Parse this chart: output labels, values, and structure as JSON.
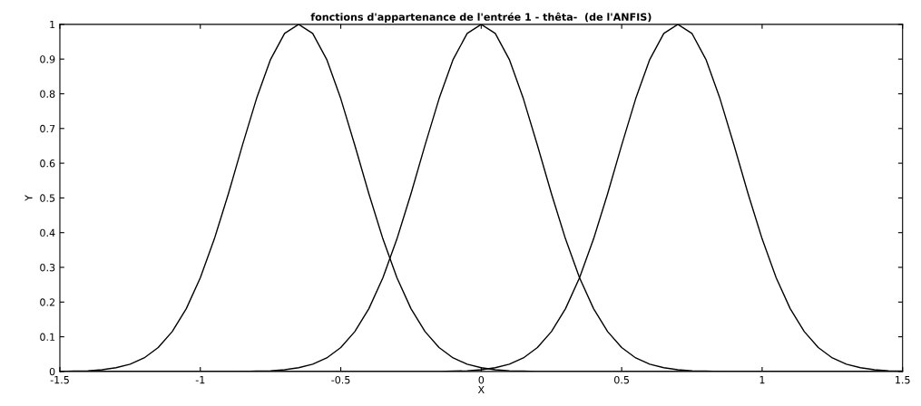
{
  "chart_data": {
    "type": "line",
    "title": "fonctions d'appartenance de l'entrée 1 - thêta-  (de l'ANFIS)",
    "xlabel": "X",
    "ylabel": "Y",
    "x": [
      -1.5,
      -1.45,
      -1.4,
      -1.35,
      -1.3,
      -1.25,
      -1.2,
      -1.15,
      -1.1,
      -1.05,
      -1.0,
      -0.95,
      -0.9,
      -0.85,
      -0.8,
      -0.75,
      -0.7,
      -0.65,
      -0.6,
      -0.55,
      -0.5,
      -0.45,
      -0.4,
      -0.35,
      -0.3,
      -0.25,
      -0.2,
      -0.15,
      -0.1,
      -0.05,
      0,
      0.05,
      0.1,
      0.15,
      0.2,
      0.25,
      0.3,
      0.35,
      0.4,
      0.45,
      0.5,
      0.55,
      0.6,
      0.65,
      0.7,
      0.75,
      0.8,
      0.85,
      0.9,
      0.95,
      1.0,
      1.05,
      1.1,
      1.15,
      1.2,
      1.25,
      1.3,
      1.35,
      1.4,
      1.45,
      1.5
    ],
    "series": [
      {
        "color": "#000000",
        "values": [
          0,
          0.001,
          0.002,
          0.005,
          0.011,
          0.021,
          0.039,
          0.069,
          0.115,
          0.181,
          0.27,
          0.382,
          0.512,
          0.652,
          0.786,
          0.899,
          0.974,
          1,
          0.974,
          0.899,
          0.786,
          0.652,
          0.512,
          0.382,
          0.27,
          0.181,
          0.115,
          0.069,
          0.039,
          0.021,
          0.011,
          0.005,
          0.002,
          0.001,
          0,
          0,
          0,
          0,
          0,
          0,
          0,
          0,
          0,
          0,
          0,
          0,
          0,
          0,
          0,
          0,
          0,
          0,
          0,
          0,
          0,
          0,
          0,
          0,
          0,
          0,
          0
        ]
      },
      {
        "color": "#000000",
        "values": [
          0,
          0,
          0,
          0,
          0,
          0,
          0,
          0,
          0,
          0,
          0,
          0,
          0,
          0,
          0.001,
          0.002,
          0.005,
          0.011,
          0.021,
          0.039,
          0.069,
          0.115,
          0.181,
          0.27,
          0.382,
          0.512,
          0.652,
          0.786,
          0.899,
          0.974,
          1,
          0.974,
          0.899,
          0.786,
          0.652,
          0.512,
          0.382,
          0.27,
          0.181,
          0.115,
          0.069,
          0.039,
          0.021,
          0.011,
          0.005,
          0.002,
          0.001,
          0,
          0,
          0,
          0,
          0,
          0,
          0,
          0,
          0,
          0,
          0,
          0,
          0,
          0
        ]
      },
      {
        "color": "#000000",
        "values": [
          0,
          0,
          0,
          0,
          0,
          0,
          0,
          0,
          0,
          0,
          0,
          0,
          0,
          0,
          0,
          0,
          0,
          0,
          0,
          0,
          0,
          0,
          0,
          0,
          0,
          0,
          0,
          0,
          0.001,
          0.002,
          0.005,
          0.011,
          0.021,
          0.039,
          0.069,
          0.115,
          0.181,
          0.27,
          0.382,
          0.512,
          0.652,
          0.786,
          0.899,
          0.974,
          1,
          0.974,
          0.899,
          0.786,
          0.652,
          0.512,
          0.382,
          0.27,
          0.181,
          0.115,
          0.069,
          0.039,
          0.021,
          0.011,
          0.005,
          0.002,
          0.001
        ]
      }
    ],
    "xlim": [
      -1.5,
      1.5
    ],
    "ylim": [
      0,
      1
    ],
    "xticks": [
      -1.5,
      -1,
      -0.5,
      0,
      0.5,
      1,
      1.5
    ],
    "yticks": [
      0,
      0.1,
      0.2,
      0.3,
      0.4,
      0.5,
      0.6,
      0.7,
      0.8,
      0.9,
      1
    ],
    "grid": false,
    "legend": false
  }
}
